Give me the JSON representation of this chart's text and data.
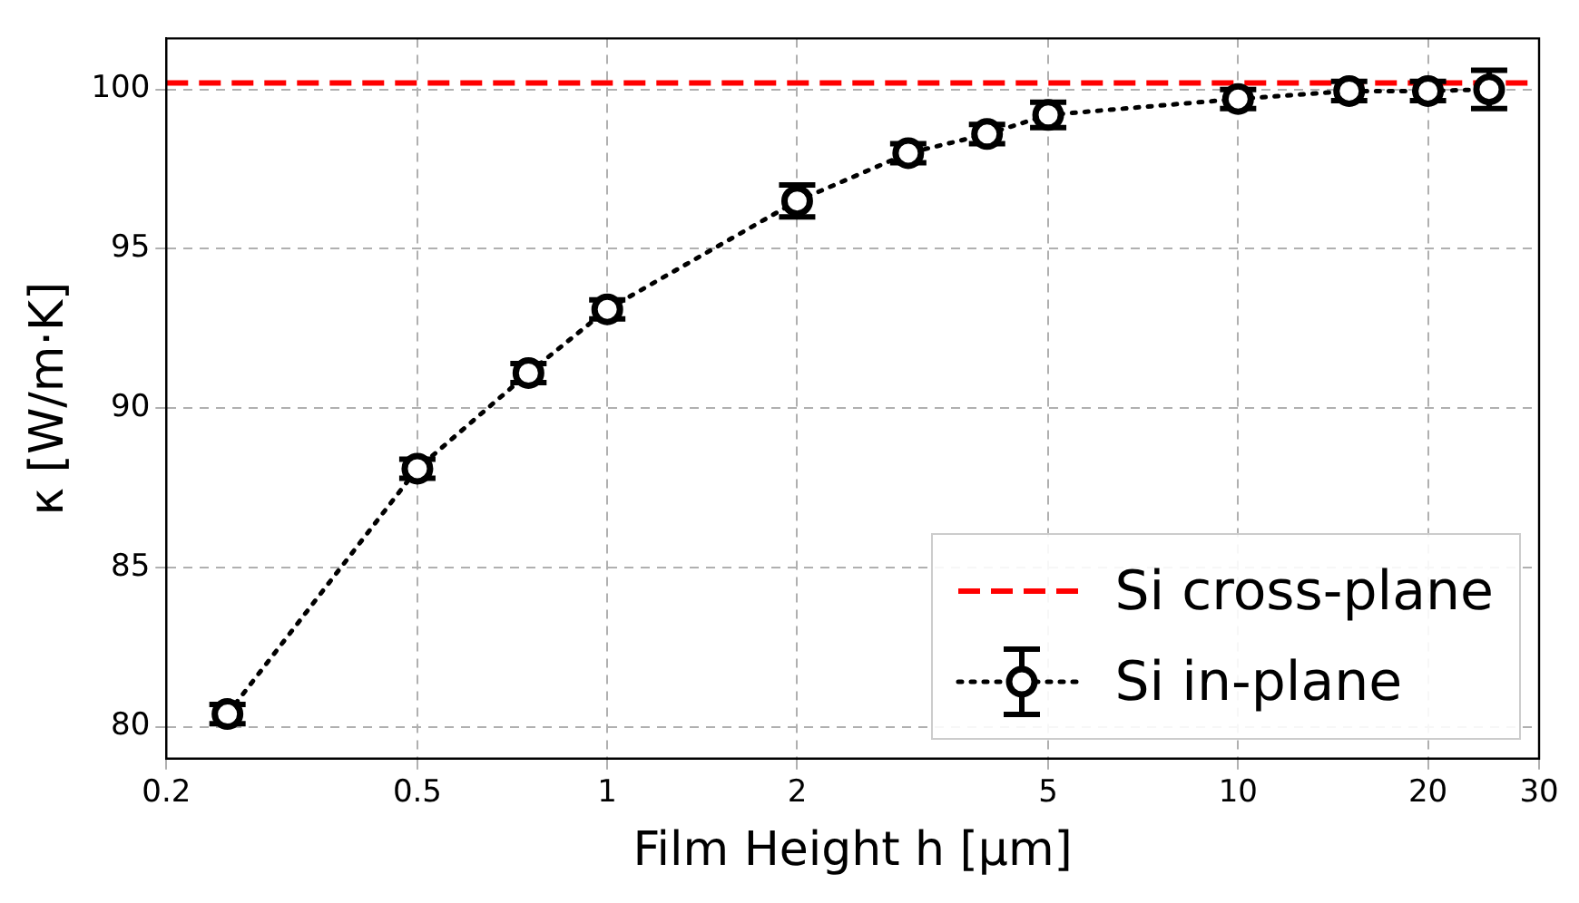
{
  "chart_data": {
    "type": "line",
    "xlabel": "Film Height h [µm]",
    "ylabel": "κ [W/m·K]",
    "log": "x",
    "xlim": [
      0.2,
      30
    ],
    "ylim": [
      79,
      101.6
    ],
    "xticks": [
      0.2,
      0.5,
      1,
      2,
      5,
      10,
      20,
      30
    ],
    "yticks": [
      80,
      85,
      90,
      95,
      100
    ],
    "grid": true,
    "legend": "bottom right",
    "marker": "circle",
    "line_style": "dotted",
    "series": [
      {
        "name": "Si in-plane",
        "color": "#000000",
        "x": [
          0.25,
          0.5,
          0.75,
          1,
          2,
          3,
          4,
          5,
          10,
          15,
          20,
          25
        ],
        "values": [
          80.4,
          88.1,
          91.1,
          93.1,
          96.5,
          98.0,
          98.6,
          99.2,
          99.7,
          99.95,
          99.95,
          100.0
        ],
        "errors": [
          0.3,
          0.3,
          0.3,
          0.3,
          0.5,
          0.3,
          0.3,
          0.4,
          0.3,
          0.3,
          0.3,
          0.6
        ]
      }
    ],
    "ref_lines": [
      {
        "axis": "y",
        "value": 100.2,
        "label": "Si cross-plane",
        "color": "#ff0000",
        "line_style": "dashed"
      }
    ]
  }
}
